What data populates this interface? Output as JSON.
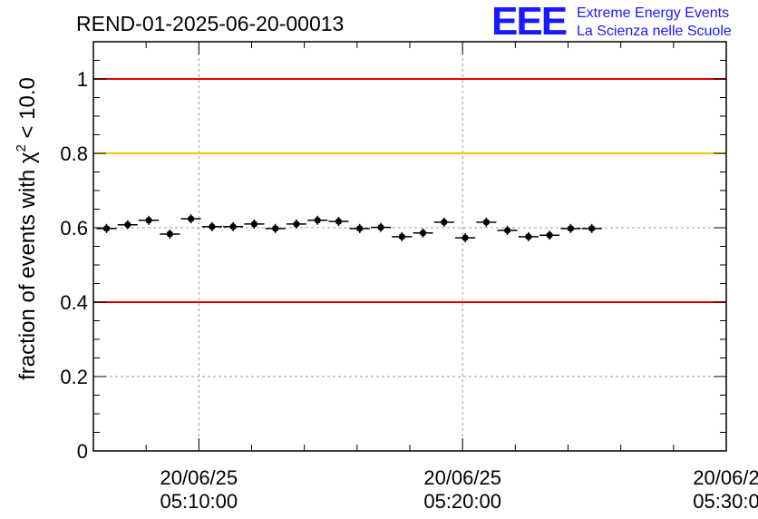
{
  "chart_data": {
    "type": "scatter",
    "title": "REND-01-2025-06-20-00013",
    "ylabel": {
      "prefix": "fraction of events with ",
      "symbol": "χ",
      "sup": "2",
      "suffix": " < 10.0"
    },
    "xlabel": "",
    "ylim": [
      0,
      1.1
    ],
    "y_ticks": [
      {
        "value": 0,
        "label": "0"
      },
      {
        "value": 0.2,
        "label": "0.2"
      },
      {
        "value": 0.4,
        "label": "0.4"
      },
      {
        "value": 0.6,
        "label": "0.6"
      },
      {
        "value": 0.8,
        "label": "0.8"
      },
      {
        "value": 1.0,
        "label": "1"
      }
    ],
    "x_ticks": [
      {
        "value": 10,
        "date": "20/06/25",
        "time": "05:10:00"
      },
      {
        "value": 20,
        "date": "20/06/25",
        "time": "05:20:00"
      },
      {
        "value": 30,
        "date": "20/06/2",
        "time": "05:30:0"
      }
    ],
    "xlim_minutes_after_0500": [
      6.0,
      30.0
    ],
    "grid": true,
    "reference_lines": [
      {
        "y": 1.0,
        "color": "#e00000"
      },
      {
        "y": 0.8,
        "color": "#ffc400"
      },
      {
        "y": 0.4,
        "color": "#e00000"
      }
    ],
    "bin_halfwidth_minutes": 0.38,
    "points": [
      {
        "x": 6.5,
        "y": 0.598
      },
      {
        "x": 7.3,
        "y": 0.608
      },
      {
        "x": 8.1,
        "y": 0.62
      },
      {
        "x": 8.9,
        "y": 0.583
      },
      {
        "x": 9.7,
        "y": 0.624
      },
      {
        "x": 10.5,
        "y": 0.603
      },
      {
        "x": 11.3,
        "y": 0.603
      },
      {
        "x": 12.1,
        "y": 0.61
      },
      {
        "x": 12.9,
        "y": 0.598
      },
      {
        "x": 13.7,
        "y": 0.61
      },
      {
        "x": 14.5,
        "y": 0.62
      },
      {
        "x": 15.3,
        "y": 0.617
      },
      {
        "x": 16.1,
        "y": 0.598
      },
      {
        "x": 16.9,
        "y": 0.601
      },
      {
        "x": 17.7,
        "y": 0.576
      },
      {
        "x": 18.5,
        "y": 0.586
      },
      {
        "x": 19.3,
        "y": 0.615
      },
      {
        "x": 20.1,
        "y": 0.573
      },
      {
        "x": 20.9,
        "y": 0.615
      },
      {
        "x": 21.7,
        "y": 0.593
      },
      {
        "x": 22.5,
        "y": 0.576
      },
      {
        "x": 23.3,
        "y": 0.58
      },
      {
        "x": 24.1,
        "y": 0.598
      },
      {
        "x": 24.9,
        "y": 0.598
      }
    ],
    "colors": {
      "points": "#000000",
      "grid": "#9a9a9a",
      "logo": "#1a1aff"
    }
  },
  "logo": {
    "acronym": "EEE",
    "line1": "Extreme Energy Events",
    "line2": "La Scienza nelle Scuole"
  }
}
